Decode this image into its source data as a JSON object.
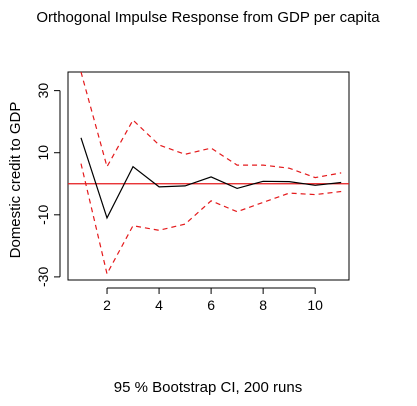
{
  "chart_data": {
    "type": "line",
    "title": "Orthogonal Impulse Response from GDP per capita",
    "ylabel": "Domestic credit to GDP",
    "xlabel": "95 % Bootstrap CI,  200 runs",
    "xlim": [
      0.5,
      11.3
    ],
    "ylim": [
      -31,
      36
    ],
    "x_ticks": [
      2,
      4,
      6,
      8,
      10
    ],
    "y_ticks": [
      -30,
      -10,
      10,
      30
    ],
    "x": [
      1,
      2,
      3,
      4,
      5,
      6,
      7,
      8,
      9,
      10,
      11
    ],
    "series": [
      {
        "role": "response",
        "values": [
          14.8,
          -11,
          5.5,
          -1,
          -0.7,
          2.2,
          -1.5,
          0.8,
          0.7,
          -0.5,
          0.4
        ],
        "color": "#000000",
        "style": "solid"
      },
      {
        "role": "upper",
        "values": [
          36,
          5.5,
          20.5,
          12.5,
          9.5,
          11.5,
          6,
          6,
          5,
          2,
          3.5
        ],
        "color": "#e41a1c",
        "style": "dashed"
      },
      {
        "role": "lower",
        "values": [
          6.5,
          -29,
          -13.5,
          -15,
          -13,
          -5.5,
          -9,
          -6,
          -3,
          -3.5,
          -2.5
        ],
        "color": "#e41a1c",
        "style": "dashed"
      }
    ],
    "zero_line": {
      "value": 0,
      "color": "#e41a1c"
    }
  }
}
